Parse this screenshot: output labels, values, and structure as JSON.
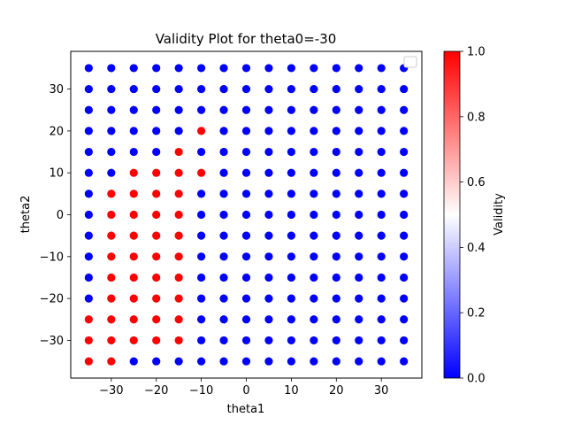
{
  "chart_data": {
    "type": "scatter",
    "title": "Validity Plot for theta0=-30",
    "xlabel": "theta1",
    "ylabel": "theta2",
    "xlim": [
      -39,
      39
    ],
    "ylim": [
      -39,
      39
    ],
    "x_ticks": [
      -30,
      -20,
      -10,
      0,
      10,
      20,
      30
    ],
    "y_ticks": [
      -30,
      -20,
      -10,
      0,
      10,
      20,
      30
    ],
    "x_tick_labels": [
      "−30",
      "−20",
      "−10",
      "0",
      "10",
      "20",
      "30"
    ],
    "y_tick_labels": [
      "−30",
      "−20",
      "−10",
      "0",
      "10",
      "20",
      "30"
    ],
    "grid_values": [
      -35,
      -30,
      -25,
      -20,
      -15,
      -10,
      -5,
      0,
      5,
      10,
      15,
      20,
      25,
      30,
      35
    ],
    "value_default": 0,
    "valid_points": [
      [
        -10,
        20
      ],
      [
        -15,
        15
      ],
      [
        -25,
        10
      ],
      [
        -20,
        10
      ],
      [
        -15,
        10
      ],
      [
        -10,
        10
      ],
      [
        -30,
        5
      ],
      [
        -25,
        5
      ],
      [
        -20,
        5
      ],
      [
        -15,
        5
      ],
      [
        -30,
        0
      ],
      [
        -25,
        0
      ],
      [
        -20,
        0
      ],
      [
        -15,
        0
      ],
      [
        -30,
        -5
      ],
      [
        -25,
        -5
      ],
      [
        -20,
        -5
      ],
      [
        -15,
        -5
      ],
      [
        -30,
        -10
      ],
      [
        -25,
        -10
      ],
      [
        -20,
        -10
      ],
      [
        -15,
        -10
      ],
      [
        -30,
        -15
      ],
      [
        -25,
        -15
      ],
      [
        -20,
        -15
      ],
      [
        -15,
        -15
      ],
      [
        -30,
        -20
      ],
      [
        -25,
        -20
      ],
      [
        -20,
        -20
      ],
      [
        -15,
        -20
      ],
      [
        -35,
        -25
      ],
      [
        -30,
        -25
      ],
      [
        -25,
        -25
      ],
      [
        -20,
        -25
      ],
      [
        -15,
        -25
      ],
      [
        -35,
        -30
      ],
      [
        -30,
        -30
      ],
      [
        -25,
        -30
      ],
      [
        -20,
        -30
      ],
      [
        -15,
        -30
      ],
      [
        -35,
        -35
      ],
      [
        -30,
        -35
      ]
    ],
    "colorbar": {
      "label": "Validity",
      "range": [
        0,
        1
      ],
      "ticks": [
        0.0,
        0.2,
        0.4,
        0.6,
        0.8,
        1.0
      ],
      "tick_labels": [
        "0.0",
        "0.2",
        "0.4",
        "0.6",
        "0.8",
        "1.0"
      ],
      "cmap": [
        "#0000ff",
        "#ffffff",
        "#ff0000"
      ]
    },
    "legend": {
      "placement": "top-right",
      "entries": []
    },
    "grid": false
  }
}
